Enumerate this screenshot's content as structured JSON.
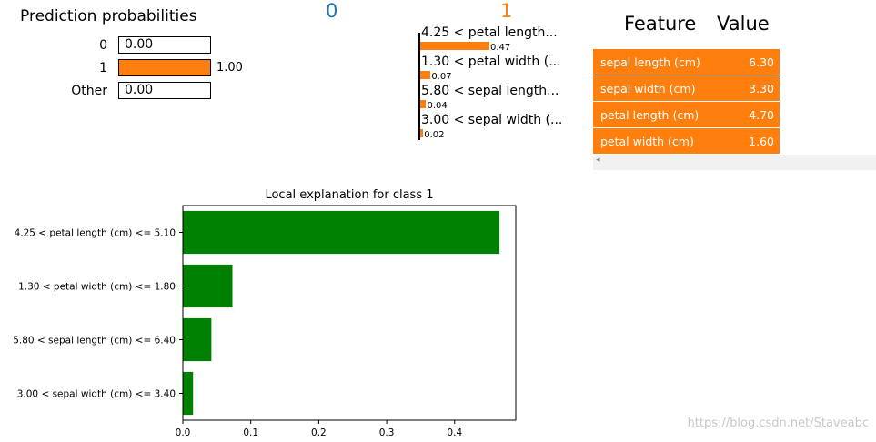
{
  "prediction": {
    "title": "Prediction probabilities",
    "rows": [
      {
        "label": "0",
        "value": 0.0,
        "text": "0.00",
        "color": "#1f77b4"
      },
      {
        "label": "1",
        "value": 1.0,
        "text": "1.00",
        "color": "#ff7f0e"
      },
      {
        "label": "Other",
        "value": 0.0,
        "text": "0.00",
        "color": "#808080"
      }
    ]
  },
  "class_headers": {
    "neg": {
      "label": "0",
      "color": "#1f77b4"
    },
    "pos": {
      "label": "1",
      "color": "#ff7f0e"
    }
  },
  "mini_explanation": {
    "bar_color": "#ff7f0e",
    "max_value": 0.47,
    "items": [
      {
        "feature": "4.25 < petal length...",
        "value": 0.47,
        "text": "0.47"
      },
      {
        "feature": "1.30 < petal width (...",
        "value": 0.07,
        "text": "0.07"
      },
      {
        "feature": "5.80 < sepal length...",
        "value": 0.04,
        "text": "0.04"
      },
      {
        "feature": "3.00 < sepal width (...",
        "value": 0.02,
        "text": "0.02"
      }
    ]
  },
  "feature_table": {
    "header_feature": "Feature",
    "header_value": "Value",
    "row_color": "#ff7f0e",
    "rows": [
      {
        "feature": "sepal length (cm)",
        "value": "6.30"
      },
      {
        "feature": "sepal width (cm)",
        "value": "3.30"
      },
      {
        "feature": "petal length (cm)",
        "value": "4.70"
      },
      {
        "feature": "petal width (cm)",
        "value": "1.60"
      }
    ],
    "scroll_arrow": "◂"
  },
  "chart_data": {
    "type": "bar",
    "orientation": "horizontal",
    "title": "Local explanation for class 1",
    "categories": [
      "4.25 < petal length (cm) <= 5.10",
      "1.30 < petal width (cm) <= 1.80",
      "5.80 < sepal length (cm) <= 6.40",
      "3.00 < sepal width (cm) <= 3.40"
    ],
    "values": [
      0.466,
      0.073,
      0.042,
      0.015
    ],
    "xlim": [
      0,
      0.49
    ],
    "xticks": [
      0.0,
      0.1,
      0.2,
      0.3,
      0.4
    ],
    "xtick_labels": [
      "0.0",
      "0.1",
      "0.2",
      "0.3",
      "0.4"
    ],
    "bar_color": "#008000",
    "grid": false
  },
  "watermark": "https://blog.csdn.net/Staveabc"
}
